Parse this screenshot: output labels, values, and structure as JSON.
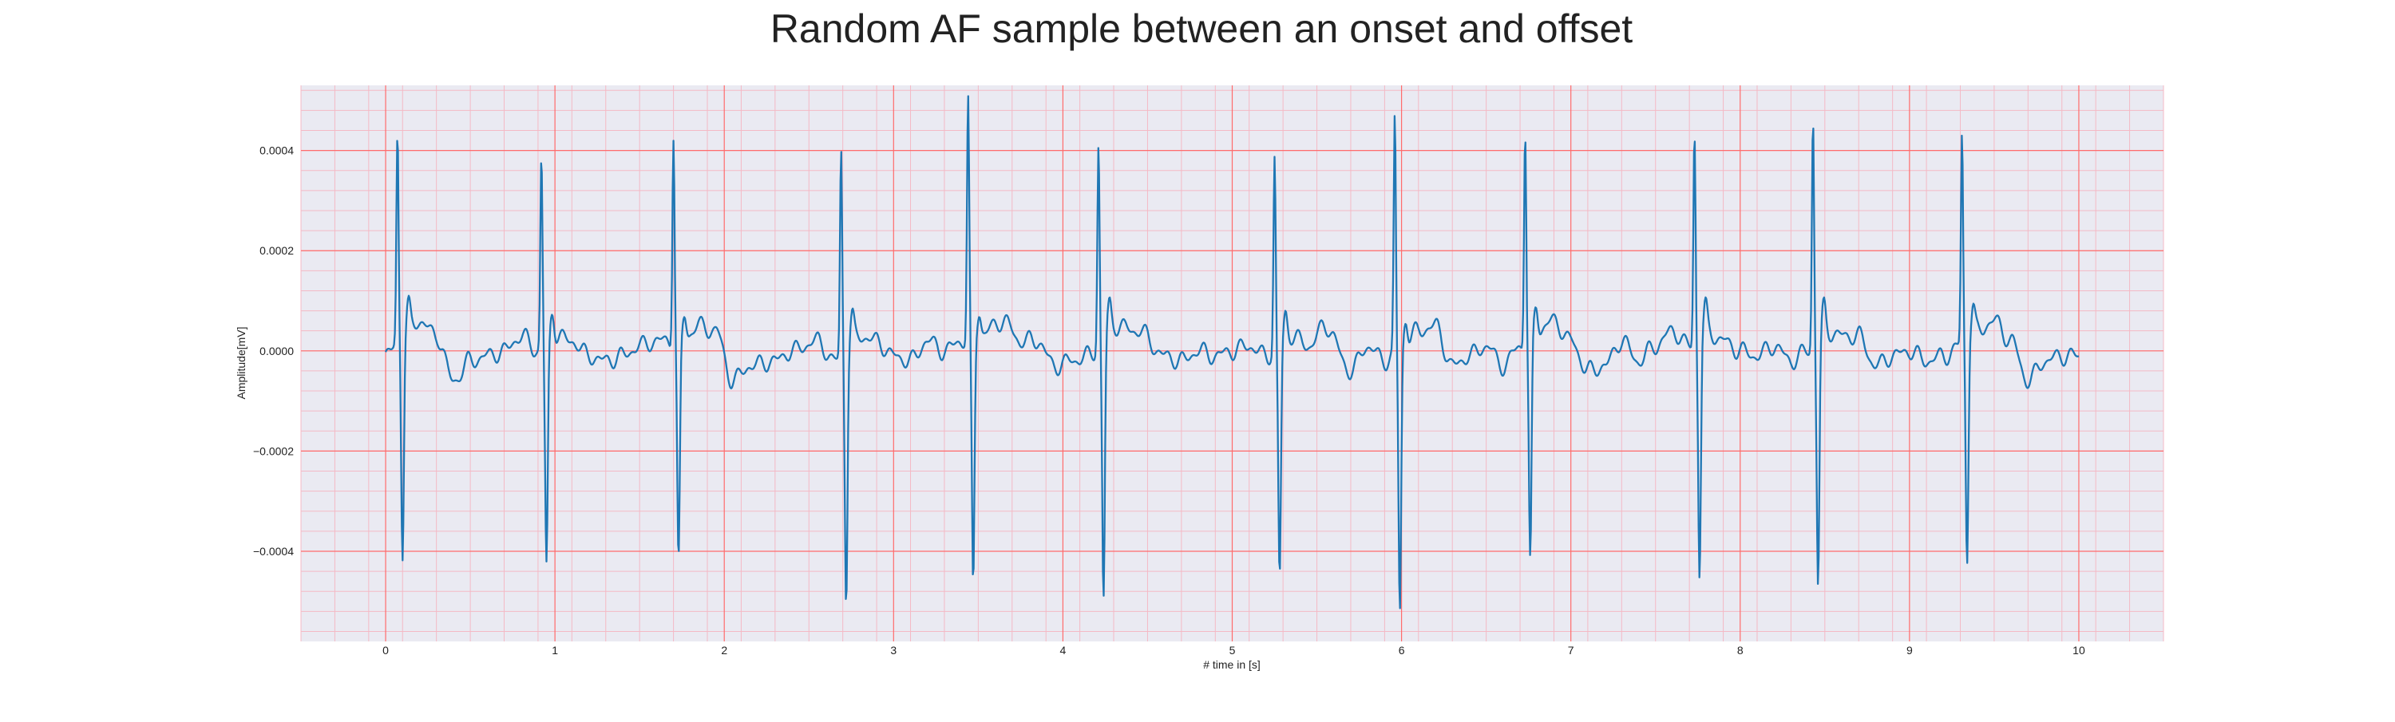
{
  "chart_data": {
    "type": "line",
    "title": "Random AF sample between an onset and offset",
    "xlabel": "# time in [s]",
    "ylabel": "Amplitude[mV]",
    "xlim": [
      -0.5,
      10.5
    ],
    "ylim": [
      -0.00058,
      0.00053
    ],
    "x_ticks": [
      0,
      1,
      2,
      3,
      4,
      5,
      6,
      7,
      8,
      9,
      10
    ],
    "x_tick_labels": [
      "0",
      "1",
      "2",
      "3",
      "4",
      "5",
      "6",
      "7",
      "8",
      "9",
      "10"
    ],
    "y_ticks": [
      -0.0004,
      -0.0002,
      0.0,
      0.0002,
      0.0004
    ],
    "y_tick_labels": [
      "−0.0004",
      "−0.0002",
      "0.0000",
      "0.0002",
      "0.0004"
    ],
    "grid": true,
    "minor_grid": true,
    "colors": {
      "line": "#1f77b4",
      "background": "#eaeaf2",
      "major_grid": "#ff6b6b",
      "minor_grid": "#f4b9c5"
    },
    "series": [
      {
        "beats": [
          {
            "t": 0.07,
            "peak": 0.000415,
            "trough": -0.00044
          },
          {
            "t": 0.92,
            "peak": 0.000385,
            "trough": -0.000445
          },
          {
            "t": 1.7,
            "peak": 0.000415,
            "trough": -0.00045
          },
          {
            "t": 2.69,
            "peak": 0.00041,
            "trough": -0.000495
          },
          {
            "t": 3.44,
            "peak": 0.00048,
            "trough": -0.0005
          },
          {
            "t": 4.21,
            "peak": 0.000402,
            "trough": -0.000525
          },
          {
            "t": 5.25,
            "peak": 0.000383,
            "trough": -0.000465
          },
          {
            "t": 5.96,
            "peak": 0.000465,
            "trough": -0.00053
          },
          {
            "t": 6.73,
            "peak": 0.00043,
            "trough": -0.000455
          },
          {
            "t": 7.73,
            "peak": 0.000422,
            "trough": -0.000475
          },
          {
            "t": 8.43,
            "peak": 0.000458,
            "trough": -0.00049
          },
          {
            "t": 9.31,
            "peak": 0.000413,
            "trough": -0.000445
          }
        ],
        "baseline": [
          [
            0.0,
            -1e-05
          ],
          [
            0.12,
            4e-05
          ],
          [
            0.2,
            6e-05
          ],
          [
            0.3,
            3e-05
          ],
          [
            0.4,
            -6e-05
          ],
          [
            0.5,
            -2e-05
          ],
          [
            0.6,
            -1e-05
          ],
          [
            0.7,
            0.0
          ],
          [
            0.8,
            3e-05
          ],
          [
            0.9,
            0.0
          ],
          [
            1.0,
            3e-05
          ],
          [
            1.1,
            2e-05
          ],
          [
            1.2,
            -1e-05
          ],
          [
            1.3,
            -2e-05
          ],
          [
            1.4,
            -1e-05
          ],
          [
            1.5,
            1e-05
          ],
          [
            1.6,
            2e-05
          ],
          [
            1.75,
            2e-05
          ],
          [
            1.85,
            5e-05
          ],
          [
            1.95,
            4e-05
          ],
          [
            2.05,
            -6e-05
          ],
          [
            2.15,
            -3e-05
          ],
          [
            2.3,
            -2e-05
          ],
          [
            2.4,
            0.0
          ],
          [
            2.55,
            2e-05
          ],
          [
            2.65,
            -2e-05
          ],
          [
            2.8,
            3e-05
          ],
          [
            2.9,
            2e-05
          ],
          [
            3.0,
            -1e-05
          ],
          [
            3.1,
            -2e-05
          ],
          [
            3.2,
            2e-05
          ],
          [
            3.3,
            0.0
          ],
          [
            3.4,
            2e-05
          ],
          [
            3.5,
            3e-05
          ],
          [
            3.65,
            6e-05
          ],
          [
            3.75,
            2e-05
          ],
          [
            3.85,
            2e-05
          ],
          [
            3.95,
            -3e-05
          ],
          [
            4.05,
            -2e-05
          ],
          [
            4.15,
            -1e-05
          ],
          [
            4.3,
            5e-05
          ],
          [
            4.45,
            4e-05
          ],
          [
            4.6,
            -1e-05
          ],
          [
            4.7,
            -2e-05
          ],
          [
            4.8,
            0.0
          ],
          [
            4.9,
            -1e-05
          ],
          [
            5.0,
            0.0
          ],
          [
            5.1,
            1e-05
          ],
          [
            5.2,
            -1e-05
          ],
          [
            5.35,
            3e-05
          ],
          [
            5.45,
            1e-05
          ],
          [
            5.55,
            5e-05
          ],
          [
            5.7,
            -4e-05
          ],
          [
            5.8,
            1e-05
          ],
          [
            5.9,
            -2e-05
          ],
          [
            6.0,
            1e-05
          ],
          [
            6.1,
            4e-05
          ],
          [
            6.2,
            5e-05
          ],
          [
            6.3,
            -3e-05
          ],
          [
            6.4,
            -1e-05
          ],
          [
            6.5,
            1e-05
          ],
          [
            6.6,
            -3e-05
          ],
          [
            6.7,
            1e-05
          ],
          [
            6.8,
            4e-05
          ],
          [
            6.9,
            6e-05
          ],
          [
            7.0,
            2e-05
          ],
          [
            7.1,
            -4e-05
          ],
          [
            7.2,
            -3e-05
          ],
          [
            7.3,
            2e-05
          ],
          [
            7.4,
            -2e-05
          ],
          [
            7.5,
            1e-05
          ],
          [
            7.6,
            4e-05
          ],
          [
            7.7,
            1e-05
          ],
          [
            7.8,
            4e-05
          ],
          [
            7.9,
            2e-05
          ],
          [
            8.0,
            0.0
          ],
          [
            8.1,
            -1e-05
          ],
          [
            8.2,
            1e-05
          ],
          [
            8.3,
            -2e-05
          ],
          [
            8.4,
            0.0
          ],
          [
            8.5,
            4e-05
          ],
          [
            8.6,
            3e-05
          ],
          [
            8.7,
            3e-05
          ],
          [
            8.8,
            -3e-05
          ],
          [
            8.9,
            -1e-05
          ],
          [
            9.0,
            0.0
          ],
          [
            9.1,
            -2e-05
          ],
          [
            9.2,
            -1e-05
          ],
          [
            9.4,
            4e-05
          ],
          [
            9.5,
            6e-05
          ],
          [
            9.6,
            2e-05
          ],
          [
            9.7,
            -6e-05
          ],
          [
            9.8,
            -2e-05
          ],
          [
            9.9,
            -1e-05
          ],
          [
            10.0,
            -1e-05
          ]
        ]
      }
    ]
  }
}
